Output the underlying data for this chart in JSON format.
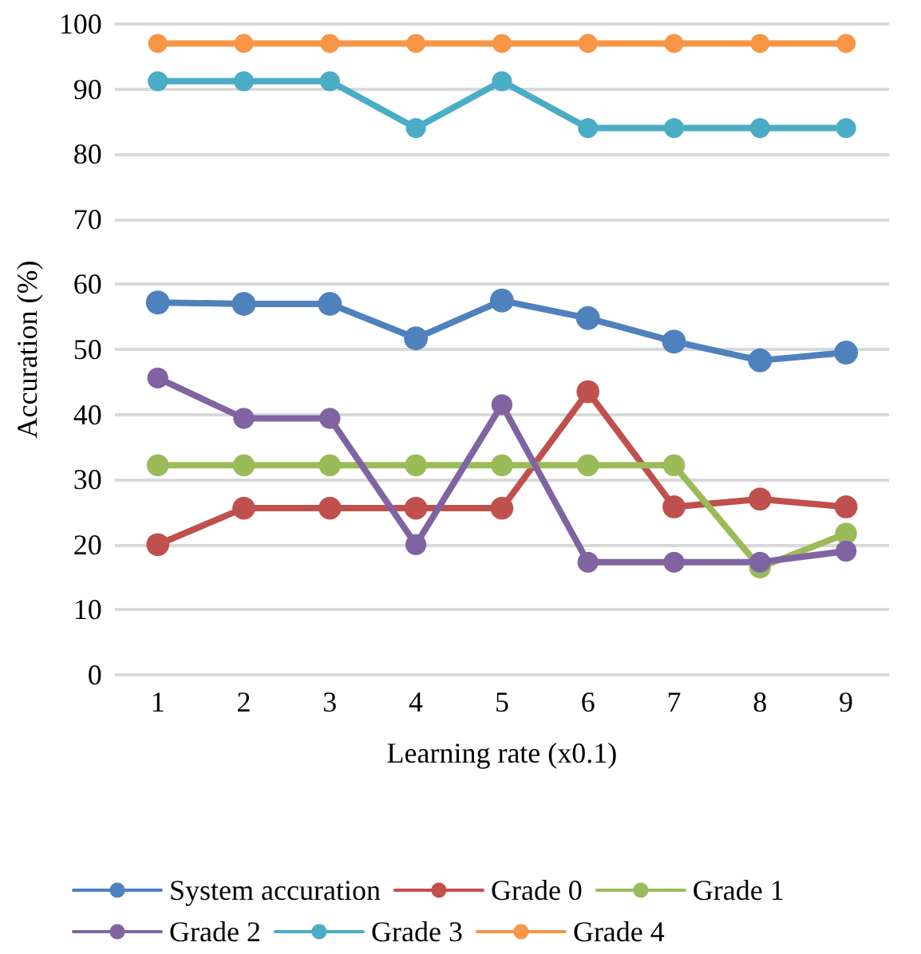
{
  "chart_data": {
    "type": "line",
    "xlabel": "Learning rate (x0.1)",
    "ylabel": "Accuration (%)",
    "categories": [
      "1",
      "2",
      "3",
      "4",
      "5",
      "6",
      "7",
      "8",
      "9"
    ],
    "series": [
      {
        "name": "System accuration",
        "color": "#4f81bd",
        "values": [
          57.2,
          57,
          57,
          51.7,
          57.5,
          54.8,
          51.2,
          48.3,
          49.5
        ]
      },
      {
        "name": "Grade 0",
        "color": "#c0504d",
        "values": [
          20,
          25.6,
          25.6,
          25.6,
          25.6,
          43.5,
          25.8,
          27,
          25.8
        ]
      },
      {
        "name": "Grade 1",
        "color": "#9bbb59",
        "values": [
          32.2,
          32.2,
          32.2,
          32.2,
          32.2,
          32.2,
          32.2,
          16.5,
          21.7
        ]
      },
      {
        "name": "Grade 2",
        "color": "#8064a2",
        "values": [
          45.6,
          39.4,
          39.4,
          20,
          41.5,
          17.3,
          17.3,
          17.3,
          19
        ]
      },
      {
        "name": "Grade 3",
        "color": "#4bacc6",
        "values": [
          91.2,
          91.2,
          91.2,
          84,
          91.2,
          84,
          84,
          84,
          84
        ]
      },
      {
        "name": "Grade 4",
        "color": "#f79646",
        "values": [
          97,
          97,
          97,
          97,
          97,
          97,
          97,
          97,
          97
        ]
      }
    ],
    "ylim": [
      0,
      100
    ],
    "yticks": [
      0,
      10,
      20,
      30,
      40,
      50,
      60,
      70,
      80,
      90,
      100
    ],
    "grid": "y",
    "legend": "bottom",
    "marker": "circle",
    "line_style": "solid"
  }
}
